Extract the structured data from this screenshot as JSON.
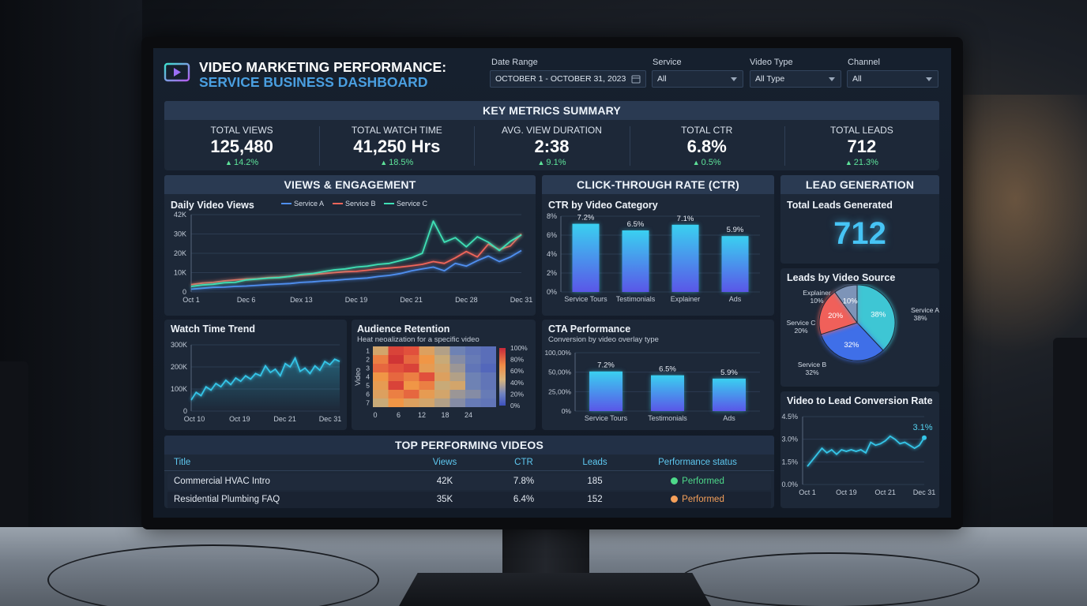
{
  "header": {
    "title_line1": "VIDEO MARKETING PERFORMANCE:",
    "title_line2": "SERVICE BUSINESS DASHBOARD",
    "icon": "video-play-icon"
  },
  "filters": {
    "date_range": {
      "label": "Date Range",
      "value": "OCTOBER 1 - OCTOBER 31, 2023"
    },
    "service": {
      "label": "Service",
      "value": "All"
    },
    "video_type": {
      "label": "Video Type",
      "value": "All Type"
    },
    "channel": {
      "label": "Channel",
      "value": "All"
    }
  },
  "kpi": {
    "title": "KEY METRICS SUMMARY",
    "items": [
      {
        "label": "TOTAL VIEWS",
        "value": "125,480",
        "delta": "14.2%"
      },
      {
        "label": "TOTAL WATCH TIME",
        "value": "41,250 Hrs",
        "delta": "18.5%"
      },
      {
        "label": "AVG. VIEW DURATION",
        "value": "2:38",
        "delta": "9.1%"
      },
      {
        "label": "TOTAL CTR",
        "value": "6.8%",
        "delta": "0.5%"
      },
      {
        "label": "TOTAL LEADS",
        "value": "712",
        "delta": "21.3%"
      }
    ]
  },
  "sections": {
    "views": "VIEWS & ENGAGEMENT",
    "ctr": "CLICK-THROUGH RATE (CTR)",
    "leads": "LEAD GENERATION",
    "top": "TOP PERFORMING VIDEOS"
  },
  "lead_total": {
    "title": "Total Leads Generated",
    "value": "712"
  },
  "colors": {
    "service_a": "#4f8ff0",
    "service_b": "#f0655a",
    "service_c": "#3fe0b5",
    "line": "#35c5e8",
    "positive": "#5ee39a"
  },
  "table": {
    "headers": [
      "Title",
      "Views",
      "CTR",
      "Leads",
      "Performance status"
    ],
    "rows": [
      {
        "title": "Commercial HVAC Intro",
        "views": "42K",
        "ctr": "7.8%",
        "leads": "185",
        "status": "Performed",
        "status_color": "#4ed98a"
      },
      {
        "title": "Residential Plumbing FAQ",
        "views": "35K",
        "ctr": "6.4%",
        "leads": "152",
        "status": "Performed",
        "status_color": "#f5a05a"
      }
    ]
  },
  "chart_data": [
    {
      "id": "daily_views",
      "type": "line",
      "title": "Daily Video Views",
      "x_ticks": [
        "Oct 1",
        "Dec 6",
        "Dex 13",
        "Dec 19",
        "Dec 21",
        "Dec 28",
        "Dec 31"
      ],
      "y_ticks": [
        "0",
        "10K",
        "20K",
        "30K",
        "42K"
      ],
      "ylim": [
        0,
        42000
      ],
      "series": [
        {
          "name": "Service A",
          "color": "#4f8ff0",
          "values": [
            1500,
            2000,
            2500,
            2600,
            3000,
            3200,
            3600,
            4000,
            4300,
            4600,
            5200,
            5500,
            6000,
            6300,
            6800,
            7200,
            7600,
            8400,
            9000,
            10000,
            11500,
            12500,
            13500,
            11500,
            15500,
            14000,
            17000,
            19500,
            16500,
            19000,
            22500
          ]
        },
        {
          "name": "Service B",
          "color": "#f0655a",
          "values": [
            4000,
            4800,
            5200,
            6000,
            6500,
            7000,
            7200,
            7800,
            8000,
            8500,
            9000,
            9500,
            10000,
            10500,
            11000,
            11200,
            11800,
            12500,
            13000,
            13500,
            14200,
            15000,
            16500,
            15500,
            18500,
            22000,
            19000,
            26000,
            23000,
            25000,
            31500
          ]
        },
        {
          "name": "Service C",
          "color": "#3fe0b5",
          "values": [
            3000,
            3800,
            4200,
            5000,
            5200,
            6500,
            7000,
            7500,
            7800,
            8500,
            9500,
            10000,
            11000,
            12000,
            12500,
            13500,
            14000,
            15000,
            15500,
            17000,
            18500,
            21000,
            38500,
            27000,
            29500,
            24500,
            30000,
            27000,
            22500,
            27500,
            31000
          ]
        }
      ]
    },
    {
      "id": "ctr_by_category",
      "type": "bar",
      "title": "CTR by Video Category",
      "categories": [
        "Service Tours",
        "Testimonials",
        "Explainer",
        "Ads"
      ],
      "values": [
        7.2,
        6.5,
        7.1,
        5.9
      ],
      "data_labels": [
        "7.2%",
        "6.5%",
        "7.1%",
        "5.9%"
      ],
      "y_ticks": [
        "0%",
        "2%",
        "4%",
        "6%",
        "8%"
      ],
      "ylim": [
        0,
        8
      ]
    },
    {
      "id": "watch_time",
      "type": "area",
      "title": "Watch Time Trend",
      "x_ticks": [
        "Oct 10",
        "Oct 19",
        "Dec 21",
        "Dec 31"
      ],
      "y_ticks": [
        "0",
        "100K",
        "200K",
        "300K"
      ],
      "ylim": [
        0,
        300000
      ],
      "values": [
        50000,
        85000,
        70000,
        110000,
        95000,
        125000,
        110000,
        140000,
        120000,
        150000,
        135000,
        160000,
        145000,
        170000,
        160000,
        205000,
        175000,
        190000,
        160000,
        215000,
        200000,
        240000,
        180000,
        195000,
        170000,
        205000,
        185000,
        225000,
        210000,
        235000,
        225000
      ]
    },
    {
      "id": "audience_retention",
      "type": "heatmap",
      "title": "Audience Retention",
      "subtitle": "Heat neoalization for a specific video",
      "y_axis_label": "Video",
      "rows": [
        "1",
        "2",
        "3",
        "4",
        "5",
        "6",
        "7"
      ],
      "x_ticks": [
        "0",
        "6",
        "12",
        "18",
        "24"
      ],
      "scale_ticks": [
        "100%",
        "80%",
        "60%",
        "40%",
        "20%",
        "0%"
      ],
      "values": [
        [
          0.55,
          0.9,
          0.85,
          0.6,
          0.45,
          0.3,
          0.2,
          0.15
        ],
        [
          0.75,
          0.95,
          0.8,
          0.7,
          0.5,
          0.35,
          0.25,
          0.15
        ],
        [
          0.8,
          0.85,
          0.9,
          0.65,
          0.55,
          0.4,
          0.2,
          0.1
        ],
        [
          0.7,
          0.8,
          0.75,
          0.85,
          0.6,
          0.45,
          0.3,
          0.2
        ],
        [
          0.65,
          0.9,
          0.7,
          0.75,
          0.5,
          0.55,
          0.3,
          0.2
        ],
        [
          0.6,
          0.75,
          0.8,
          0.65,
          0.55,
          0.4,
          0.35,
          0.25
        ],
        [
          0.5,
          0.7,
          0.6,
          0.55,
          0.45,
          0.35,
          0.25,
          0.2
        ]
      ]
    },
    {
      "id": "cta_performance",
      "type": "bar",
      "title": "CTA Performance",
      "subtitle": "Conversion by video overlay type",
      "categories": [
        "Service Tours",
        "Testimonials",
        "Ads"
      ],
      "values": [
        7.2,
        6.5,
        5.9
      ],
      "data_labels": [
        "7.2%",
        "6.5%",
        "5.9%"
      ],
      "y_ticks": [
        "0%",
        "25,00%",
        "50,00%",
        "100,00%"
      ]
    },
    {
      "id": "leads_by_source",
      "type": "pie",
      "title": "Leads by Video Source",
      "slices": [
        {
          "name": "Service A",
          "value": 38,
          "label": "38%",
          "color": "#3ec6d4"
        },
        {
          "name": "Service B",
          "value": 32,
          "label": "32%",
          "color": "#3f6fe8"
        },
        {
          "name": "Service C",
          "value": 20,
          "label": "20%",
          "color": "#f0605a"
        },
        {
          "name": "Explainer",
          "value": 10,
          "label": "10%",
          "color": "#7d94b8"
        }
      ]
    },
    {
      "id": "lead_conversion",
      "type": "line",
      "title": "Video to Lead Conversion Rate",
      "x_ticks": [
        "Oct 1",
        "Oct 19",
        "Oct 21",
        "Dec 31"
      ],
      "y_ticks": [
        "0.0%",
        "1.5%",
        "3.0%",
        "4.5%"
      ],
      "ylim": [
        0,
        4.5
      ],
      "values": [
        1.2,
        1.6,
        2.0,
        2.4,
        2.1,
        2.3,
        2.0,
        2.3,
        2.2,
        2.3,
        2.2,
        2.3,
        2.1,
        2.8,
        2.6,
        2.7,
        2.9,
        3.2,
        3.0,
        2.7,
        2.8,
        2.6,
        2.4,
        2.6,
        3.1
      ],
      "end_label": "3.1%"
    }
  ]
}
